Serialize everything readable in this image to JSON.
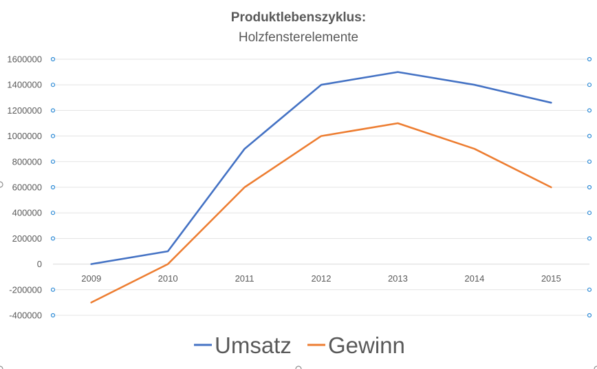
{
  "chart_data": {
    "type": "line",
    "title": "Produktlebenszyklus:",
    "subtitle": "Holzfensterelemente",
    "xlabel": "",
    "ylabel": "",
    "categories": [
      "2009",
      "2010",
      "2011",
      "2012",
      "2013",
      "2014",
      "2015"
    ],
    "ylim": [
      -400000,
      1600000
    ],
    "yticks": [
      -400000,
      -200000,
      0,
      200000,
      400000,
      600000,
      800000,
      1000000,
      1200000,
      1400000,
      1600000
    ],
    "ytick_labels": [
      "-400000",
      "-200000",
      "0",
      "200000",
      "400000",
      "600000",
      "800000",
      "1000000",
      "1200000",
      "1400000",
      "1600000"
    ],
    "grid": true,
    "legend_position": "bottom",
    "series": [
      {
        "name": "Umsatz",
        "color": "#4472C4",
        "values": [
          0,
          100000,
          900000,
          1400000,
          1500000,
          1400000,
          1260000
        ]
      },
      {
        "name": "Gewinn",
        "color": "#ED7D31",
        "values": [
          -300000,
          0,
          600000,
          1000000,
          1100000,
          900000,
          600000
        ]
      }
    ]
  }
}
